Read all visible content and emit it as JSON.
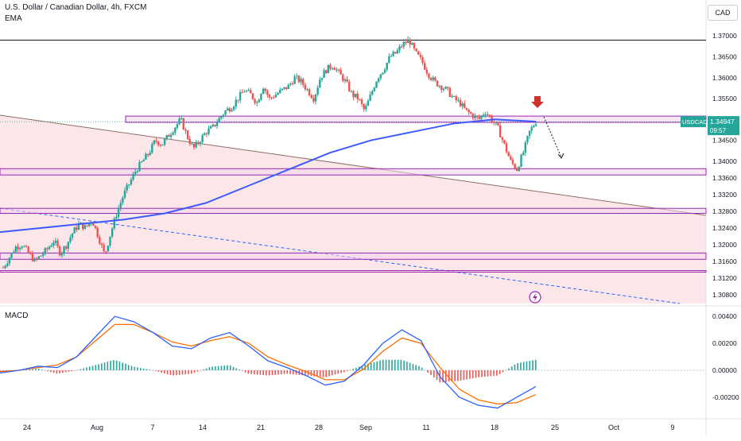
{
  "header": {
    "title": "U.S. Dollar / Canadian Dollar, 4h, FXCM",
    "indicator": "EMA",
    "currency": "CAD",
    "macd_label": "MACD"
  },
  "price_tag": {
    "symbol": "USDCAD",
    "price": "1.34947",
    "countdown": "09:57",
    "color": "#26a69a"
  },
  "colors": {
    "up": "#26a69a",
    "down": "#ef5350",
    "ema": "#3d5afe",
    "zone_fill": "#f8d7da",
    "zone_border": "#9c27b0",
    "macd_line": "#2962ff",
    "signal_line": "#ff6d00",
    "hist_up": "#26a69a",
    "hist_down": "#ef5350",
    "arrow": "#d32f2f",
    "bolt": "#9c27b0"
  },
  "chart_data": [
    {
      "type": "candlestick",
      "title": "U.S. Dollar / Canadian Dollar, 4h, FXCM",
      "x_labels": [
        "24",
        "Aug",
        "7",
        "14",
        "21",
        "28",
        "Sep",
        "11",
        "18",
        "25",
        "Oct",
        "9"
      ],
      "y_ticks": [
        "1.37000",
        "1.36500",
        "1.36000",
        "1.35500",
        "1.35000",
        "1.34500",
        "1.34000",
        "1.33600",
        "1.33200",
        "1.32800",
        "1.32400",
        "1.32000",
        "1.31600",
        "1.31200",
        "1.30800"
      ],
      "ylim": [
        1.3059,
        1.3729
      ],
      "close_path": [
        1.3145,
        1.317,
        1.3195,
        1.32,
        1.318,
        1.316,
        1.3175,
        1.319,
        1.321,
        1.318,
        1.32,
        1.323,
        1.325,
        1.324,
        1.326,
        1.322,
        1.3175,
        1.323,
        1.328,
        1.332,
        1.335,
        1.338,
        1.34,
        1.342,
        1.345,
        1.344,
        1.346,
        1.348,
        1.35,
        1.346,
        1.343,
        1.345,
        1.347,
        1.348,
        1.35,
        1.352,
        1.353,
        1.355,
        1.357,
        1.356,
        1.354,
        1.358,
        1.355,
        1.356,
        1.357,
        1.358,
        1.36,
        1.359,
        1.357,
        1.355,
        1.36,
        1.362,
        1.363,
        1.361,
        1.359,
        1.356,
        1.355,
        1.352,
        1.356,
        1.36,
        1.362,
        1.365,
        1.366,
        1.368,
        1.369,
        1.366,
        1.364,
        1.361,
        1.359,
        1.358,
        1.357,
        1.355,
        1.354,
        1.352,
        1.351,
        1.35,
        1.352,
        1.35,
        1.348,
        1.344,
        1.34,
        1.338,
        1.342,
        1.347,
        1.3495
      ],
      "last_price": 1.34947,
      "ema_path": [
        1.323,
        1.324,
        1.325,
        1.326,
        1.3275,
        1.33,
        1.334,
        1.338,
        1.342,
        1.345,
        1.347,
        1.349,
        1.35,
        1.3495
      ],
      "zones": [
        {
          "name": "resistance",
          "from": 1.3493,
          "to": 1.3508
        },
        {
          "name": "support-1",
          "from": 1.3367,
          "to": 1.3382
        },
        {
          "name": "support-2",
          "from": 1.3275,
          "to": 1.3287
        },
        {
          "name": "support-3",
          "from": 1.3165,
          "to": 1.318
        },
        {
          "name": "support-3-bottom",
          "from": 1.3136,
          "to": 1.3138
        }
      ],
      "horizontal_line": 1.369
    },
    {
      "type": "histogram+line",
      "title": "MACD",
      "y_ticks": [
        "0.00400",
        "0.00200",
        "0.00000",
        "-0.00200"
      ],
      "ylim": [
        -0.0033,
        0.0046
      ],
      "macd_path": [
        -0.0002,
        0.0,
        0.0003,
        0.0002,
        0.001,
        0.0025,
        0.004,
        0.0036,
        0.0028,
        0.0018,
        0.0016,
        0.0024,
        0.0028,
        0.0018,
        0.0007,
        0.0002,
        -0.0004,
        -0.0011,
        -0.0008,
        0.0004,
        0.002,
        0.003,
        0.0022,
        -0.0005,
        -0.002,
        -0.0026,
        -0.0028,
        -0.002,
        -0.0012
      ],
      "signal_path": [
        -0.0001,
        0.0,
        0.0002,
        0.0004,
        0.001,
        0.0022,
        0.0034,
        0.0034,
        0.0028,
        0.0021,
        0.0018,
        0.0022,
        0.0025,
        0.002,
        0.001,
        0.0004,
        -0.0001,
        -0.0007,
        -0.0007,
        0.0001,
        0.0014,
        0.0024,
        0.002,
        0.0002,
        -0.0014,
        -0.0022,
        -0.0025,
        -0.0024,
        -0.0018
      ]
    }
  ]
}
